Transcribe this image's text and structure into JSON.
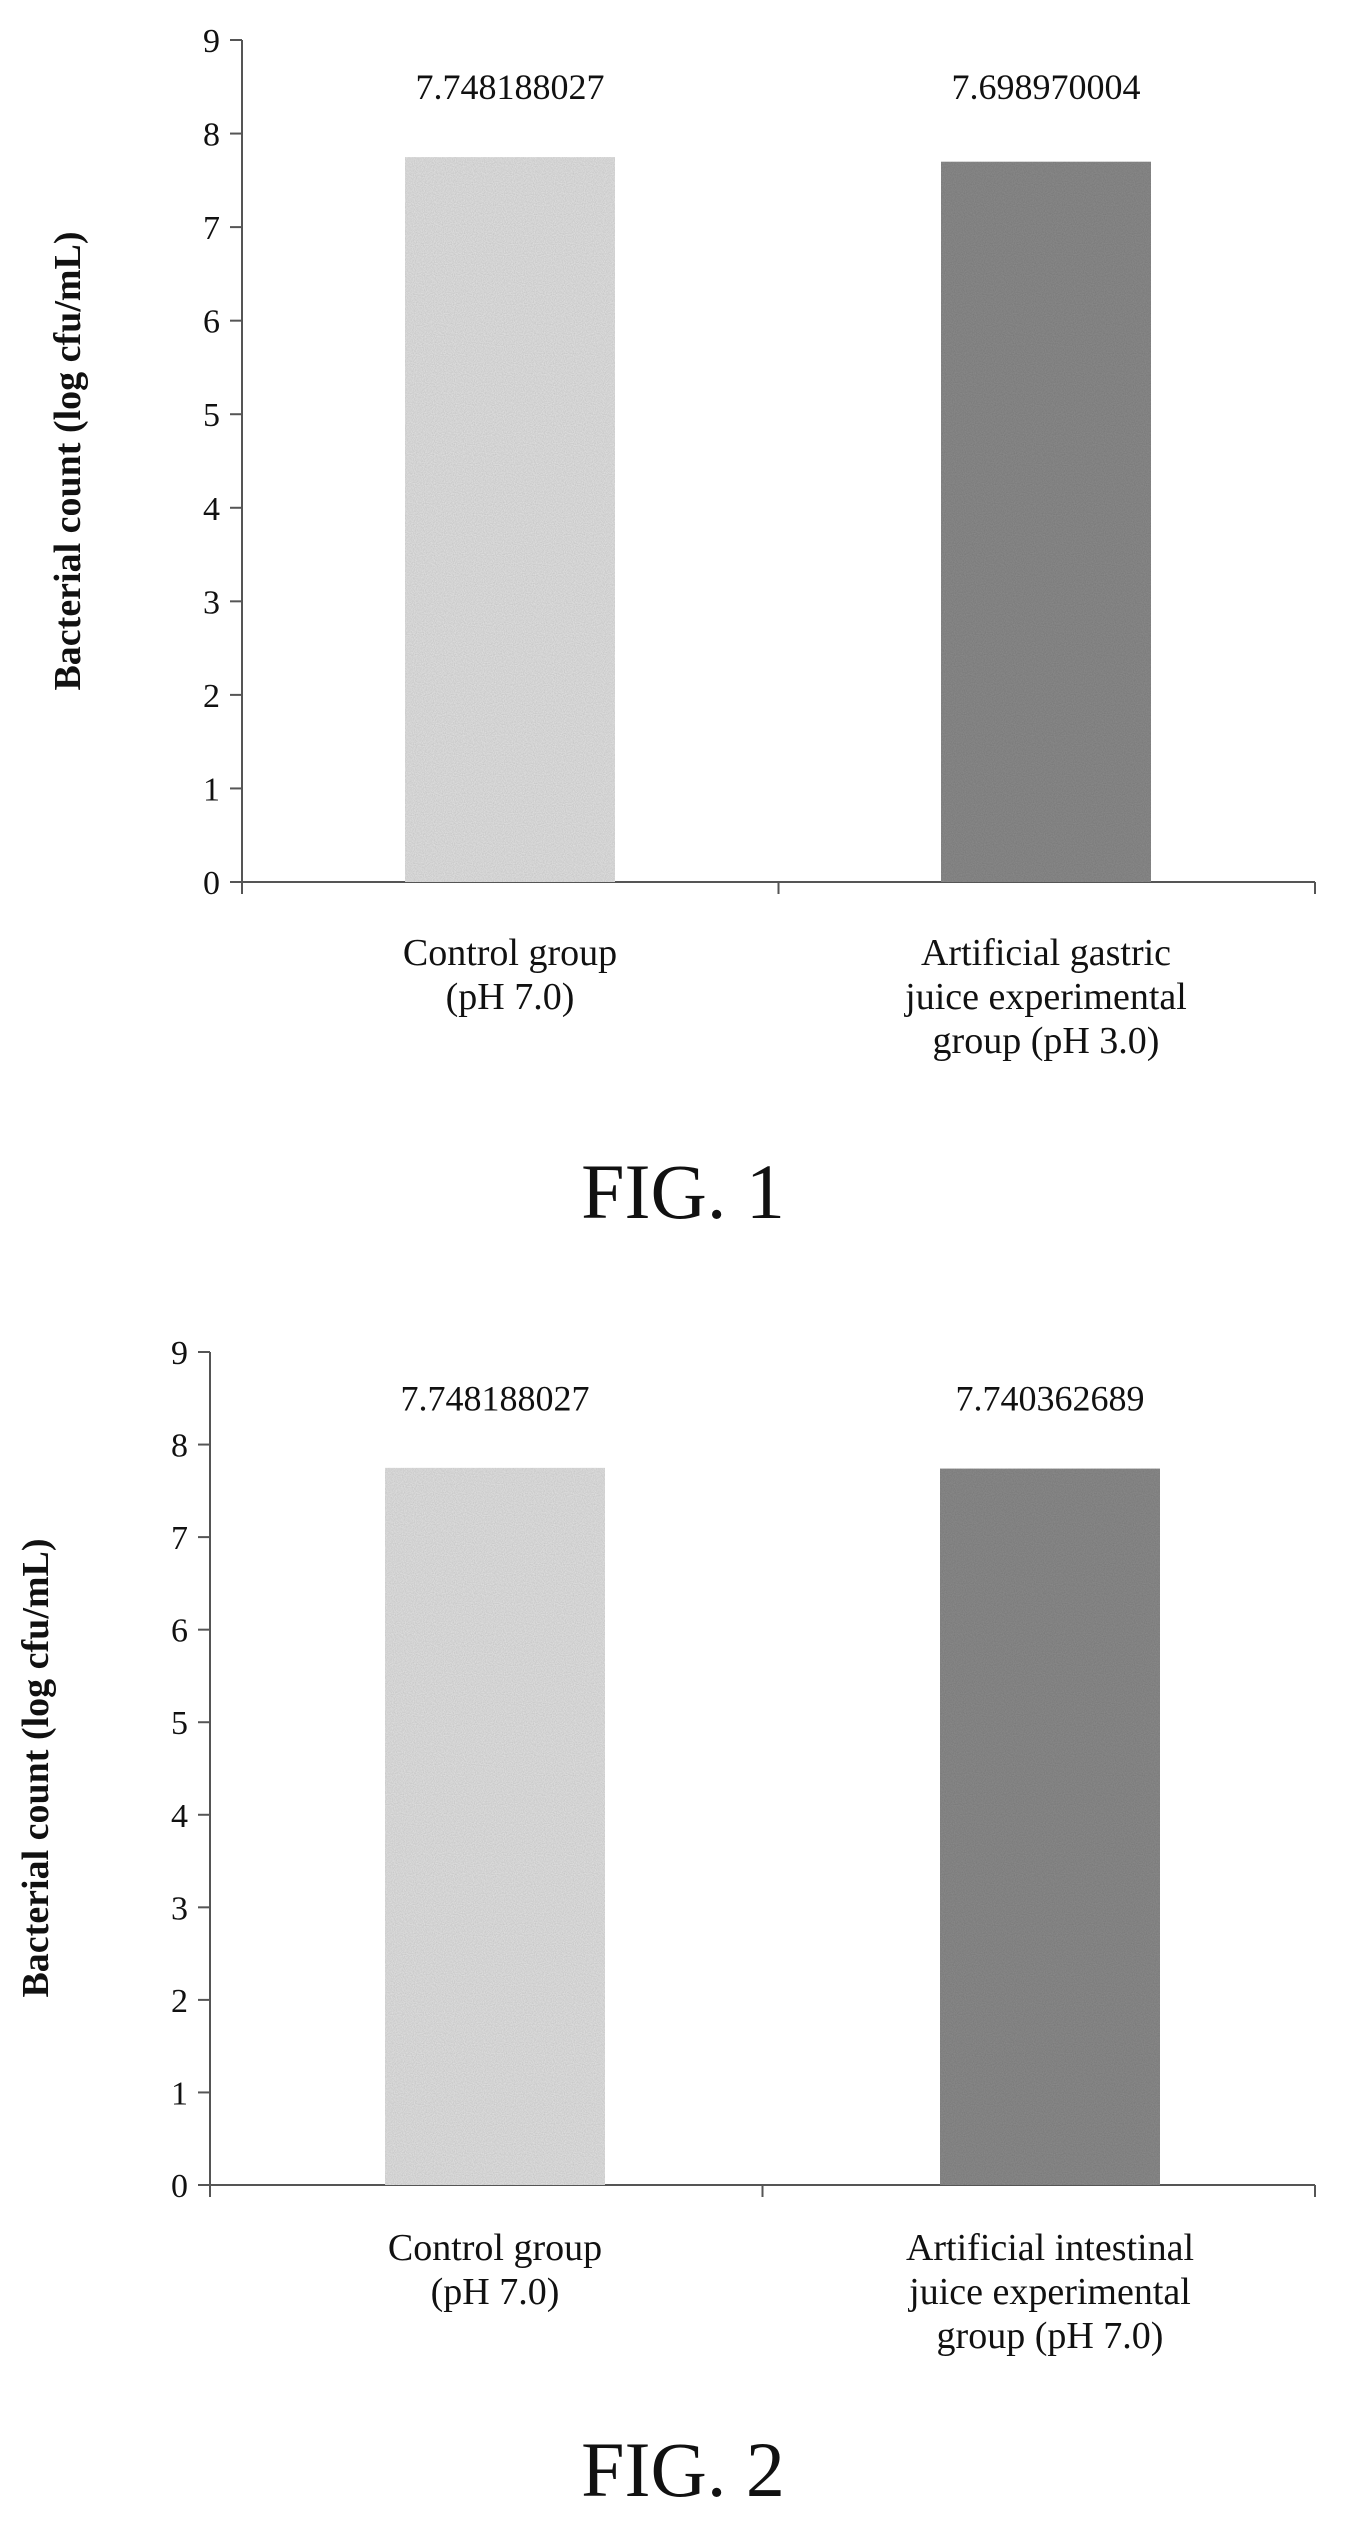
{
  "chart_data": [
    {
      "type": "bar",
      "caption": "FIG. 1",
      "ylabel": "Bacterial count (log cfu/mL)",
      "xlabel": "",
      "ylim": [
        0,
        9
      ],
      "yticks": [
        "0",
        "1",
        "2",
        "3",
        "4",
        "5",
        "6",
        "7",
        "8",
        "9"
      ],
      "grid": false,
      "categories": [
        [
          "Control group",
          "(pH 7.0)"
        ],
        [
          "Artificial gastric",
          "juice experimental",
          "group (pH 3.0)"
        ]
      ],
      "values": [
        7.748188027,
        7.698970004
      ],
      "value_labels": [
        "7.748188027",
        "7.698970004"
      ],
      "bar_colors": [
        "#e6e6e6",
        "#8e8e8e"
      ]
    },
    {
      "type": "bar",
      "caption": "FIG. 2",
      "ylabel": "Bacterial count (log cfu/mL)",
      "xlabel": "",
      "ylim": [
        0,
        9
      ],
      "yticks": [
        "0",
        "1",
        "2",
        "3",
        "4",
        "5",
        "6",
        "7",
        "8",
        "9"
      ],
      "grid": false,
      "categories": [
        [
          "Control group",
          "(pH 7.0)"
        ],
        [
          "Artificial intestinal",
          "juice experimental",
          "group (pH 7.0)"
        ]
      ],
      "values": [
        7.748188027,
        7.740362689
      ],
      "value_labels": [
        "7.748188027",
        "7.740362689"
      ],
      "bar_colors": [
        "#e6e6e6",
        "#8e8e8e"
      ]
    }
  ]
}
